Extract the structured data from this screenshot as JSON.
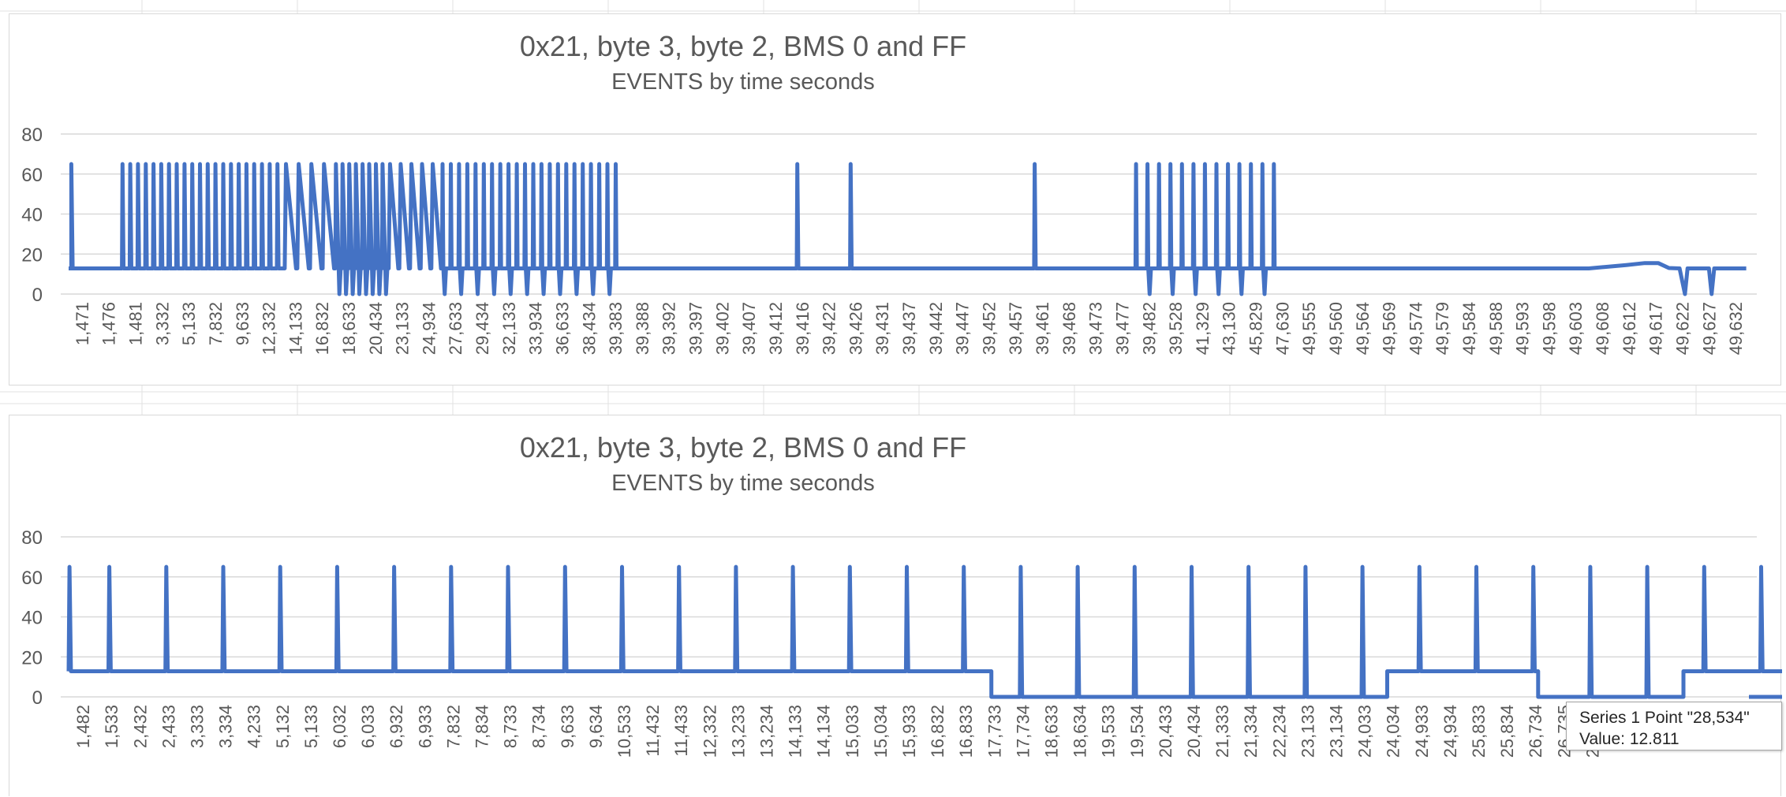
{
  "colors": {
    "series": "#4472c4",
    "axis_text": "#595959",
    "gridline": "#d9d9d9",
    "sheet_grid": "#e2e2e2"
  },
  "tooltip": {
    "line1": "Series 1 Point \"28,534\"",
    "line2": "Value: 12.811"
  },
  "chart_data": [
    {
      "type": "line",
      "title": "0x21, byte 3, byte 2, BMS 0 and FF",
      "subtitle": "EVENTS by time seconds",
      "ylim": [
        0,
        80
      ],
      "yticks": [
        0,
        20,
        40,
        60,
        80
      ],
      "grid": true,
      "legend": "none",
      "categories": [
        "1,471",
        "1,476",
        "1,481",
        "3,332",
        "5,133",
        "7,832",
        "9,633",
        "12,332",
        "14,133",
        "16,832",
        "18,633",
        "20,434",
        "23,133",
        "24,934",
        "27,633",
        "29,434",
        "32,133",
        "33,934",
        "36,633",
        "38,434",
        "39,383",
        "39,388",
        "39,392",
        "39,397",
        "39,402",
        "39,407",
        "39,412",
        "39,416",
        "39,422",
        "39,426",
        "39,431",
        "39,437",
        "39,442",
        "39,447",
        "39,452",
        "39,457",
        "39,461",
        "39,468",
        "39,473",
        "39,477",
        "39,482",
        "39,528",
        "41,329",
        "43,130",
        "45,829",
        "47,630",
        "49,555",
        "49,560",
        "49,564",
        "49,569",
        "49,574",
        "49,579",
        "49,584",
        "49,588",
        "49,593",
        "49,598",
        "49,603",
        "49,608",
        "49,612",
        "49,617",
        "49,622",
        "49,627",
        "49,632"
      ],
      "baseline": 12.8,
      "peak": 65,
      "segments": [
        {
          "from": 0,
          "to": 1.2,
          "kind": "flat"
        },
        {
          "from": 2.0,
          "to": 8.1,
          "kind": "spikes",
          "count": 21
        },
        {
          "from": 8.1,
          "to": 10.0,
          "kind": "zigzag",
          "count": 4
        },
        {
          "from": 10.0,
          "to": 12.0,
          "kind": "dense_drop",
          "count": 8
        },
        {
          "from": 12.0,
          "to": 14.0,
          "kind": "zigzag",
          "count": 5
        },
        {
          "from": 14.0,
          "to": 20.8,
          "kind": "spikes_drop",
          "count": 22
        },
        {
          "from": 20.8,
          "to": 40.0,
          "kind": "flat"
        },
        {
          "from": 40.0,
          "to": 45.6,
          "kind": "spikes_drop",
          "count": 13
        },
        {
          "from": 45.6,
          "to": 57.0,
          "kind": "flat"
        },
        {
          "from": 57.0,
          "to": 62.0,
          "kind": "tail_top"
        }
      ],
      "isolated_spikes": [
        27.3,
        29.3,
        36.2
      ]
    },
    {
      "type": "line",
      "title": "0x21, byte 3, byte 2, BMS 0 and FF",
      "subtitle": "EVENTS by time seconds",
      "ylim": [
        0,
        80
      ],
      "yticks": [
        0,
        20,
        40,
        60,
        80
      ],
      "grid": true,
      "legend": "none",
      "categories": [
        "1,482",
        "1,533",
        "2,432",
        "2,433",
        "3,333",
        "3,334",
        "4,233",
        "5,132",
        "5,133",
        "6,032",
        "6,033",
        "6,932",
        "6,933",
        "7,832",
        "7,834",
        "8,733",
        "8,734",
        "9,633",
        "9,634",
        "10,533",
        "11,432",
        "11,433",
        "12,332",
        "13,233",
        "13,234",
        "14,133",
        "14,134",
        "15,033",
        "15,034",
        "15,933",
        "16,832",
        "16,833",
        "17,733",
        "17,734",
        "18,633",
        "18,634",
        "19,533",
        "19,534",
        "20,433",
        "20,434",
        "21,333",
        "21,334",
        "22,234",
        "23,133",
        "23,134",
        "24,033",
        "24,034",
        "24,933",
        "24,934",
        "25,833",
        "25,834",
        "26,734",
        "26,735",
        "27,635",
        "28",
        "29",
        "30",
        "30",
        "31"
      ],
      "baseline_high": 12.8,
      "baseline_low": 0,
      "peak": 65,
      "value_changes": [
        {
          "from": 0,
          "to": 32.4,
          "level": "high"
        },
        {
          "from": 32.4,
          "to": 46.3,
          "level": "low"
        },
        {
          "from": 46.3,
          "to": 51.6,
          "level": "high"
        },
        {
          "from": 51.6,
          "to": 56.7,
          "level": "low"
        },
        {
          "from": 56.7,
          "to": 61.0,
          "level": "high"
        },
        {
          "from": 61.0,
          "to": 65.0,
          "level": "low"
        }
      ],
      "spike_positions": [
        0.0,
        1.4,
        3.4,
        5.4,
        7.4,
        9.4,
        11.4,
        13.4,
        15.4,
        17.4,
        19.4,
        21.4,
        23.4,
        25.4,
        27.4,
        29.4,
        31.4,
        33.4,
        35.4,
        37.4,
        39.4,
        41.4,
        43.4,
        45.4,
        47.4,
        49.4,
        51.4,
        53.4,
        55.4,
        57.4,
        59.4,
        61.4
      ]
    }
  ]
}
